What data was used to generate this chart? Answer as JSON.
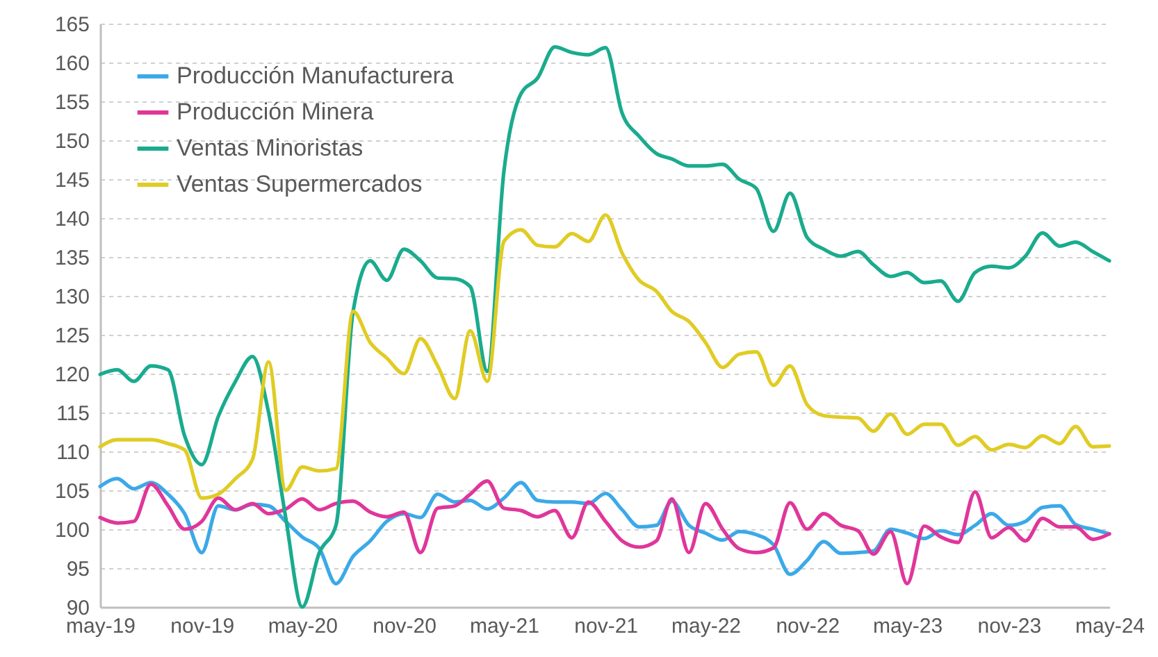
{
  "chart_data": {
    "type": "line",
    "legend": "top left",
    "grid": "y",
    "line_style": "solid",
    "x": [
      "2019-05",
      "2019-06",
      "2019-07",
      "2019-08",
      "2019-09",
      "2019-10",
      "2019-11",
      "2019-12",
      "2020-01",
      "2020-02",
      "2020-03",
      "2020-04",
      "2020-05",
      "2020-06",
      "2020-07",
      "2020-08",
      "2020-09",
      "2020-10",
      "2020-11",
      "2020-12",
      "2021-01",
      "2021-02",
      "2021-03",
      "2021-04",
      "2021-05",
      "2021-06",
      "2021-07",
      "2021-08",
      "2021-09",
      "2021-10",
      "2021-11",
      "2021-12",
      "2022-01",
      "2022-02",
      "2022-03",
      "2022-04",
      "2022-05",
      "2022-06",
      "2022-07",
      "2022-08",
      "2022-09",
      "2022-10",
      "2022-11",
      "2022-12",
      "2023-01",
      "2023-02",
      "2023-03",
      "2023-04",
      "2023-05",
      "2023-06",
      "2023-07",
      "2023-08",
      "2023-09",
      "2023-10",
      "2023-11",
      "2023-12",
      "2024-01",
      "2024-02",
      "2024-03",
      "2024-04",
      "2024-05"
    ],
    "xlim": [
      "2019-05",
      "2024-05"
    ],
    "xticks": [
      {
        "value": "2019-05",
        "label": "may-19"
      },
      {
        "value": "2019-11",
        "label": "nov-19"
      },
      {
        "value": "2020-05",
        "label": "may-20"
      },
      {
        "value": "2020-11",
        "label": "nov-20"
      },
      {
        "value": "2021-05",
        "label": "may-21"
      },
      {
        "value": "2021-11",
        "label": "nov-21"
      },
      {
        "value": "2022-05",
        "label": "may-22"
      },
      {
        "value": "2022-11",
        "label": "nov-22"
      },
      {
        "value": "2023-05",
        "label": "may-23"
      },
      {
        "value": "2023-11",
        "label": "nov-23"
      },
      {
        "value": "2024-05",
        "label": "may-24"
      }
    ],
    "ylim": [
      90,
      165
    ],
    "yticks": [
      90,
      95,
      100,
      105,
      110,
      115,
      120,
      125,
      130,
      135,
      140,
      145,
      150,
      155,
      160,
      165
    ],
    "series": [
      {
        "name": "Producción Manufacturera",
        "color": "#3ba9e8",
        "values": [
          105.5,
          106.5,
          105.2,
          106,
          104.5,
          102,
          97,
          103,
          102.5,
          103.2,
          103,
          101,
          99,
          97.5,
          93,
          96.5,
          98.5,
          101,
          102,
          101.5,
          104.5,
          103.5,
          103.7,
          102.6,
          104,
          106,
          103.7,
          103.5,
          103.5,
          103.3,
          104.6,
          102.5,
          100.3,
          100.5,
          103.6,
          100.5,
          99.5,
          98.6,
          99.7,
          99.3,
          98,
          94.2,
          96,
          98.4,
          96.9,
          97,
          97.2,
          100,
          99.5,
          98.8,
          99.8,
          99.3,
          100.5,
          102,
          100.5,
          101,
          102.8,
          103,
          100.6,
          100,
          99.4
        ]
      },
      {
        "name": "Producción Minera",
        "color": "#e0369a",
        "values": [
          101.5,
          100.8,
          101,
          105.8,
          103,
          100,
          101,
          104,
          102.5,
          103.3,
          102,
          102.6,
          103.9,
          102.5,
          103.3,
          103.6,
          102.2,
          101.6,
          102.2,
          97,
          102.7,
          103,
          104.5,
          106.2,
          102.7,
          102.4,
          101.6,
          102.4,
          98.9,
          103.5,
          101,
          98.5,
          97.7,
          98.5,
          103.9,
          97,
          103.3,
          100,
          97.5,
          97,
          97.6,
          103.4,
          100,
          102,
          100.5,
          99.8,
          96.8,
          99.7,
          93,
          100.4,
          99,
          98.3,
          104.8,
          98.9,
          100.2,
          98.5,
          101.4,
          100.3,
          100.3,
          98.7,
          99.4
        ]
      },
      {
        "name": "Ventas Minoristas",
        "color": "#1aab8e",
        "values": [
          119.9,
          120.5,
          119,
          121,
          120.5,
          112,
          108.3,
          114.5,
          119,
          122.2,
          115,
          101.5,
          90,
          97,
          100.5,
          128,
          134.5,
          132,
          136,
          134.5,
          132.3,
          132.2,
          131.2,
          120.3,
          146,
          156,
          158,
          162,
          161.3,
          161,
          161.9,
          153.5,
          150.5,
          148.3,
          147.6,
          146.7,
          146.7,
          146.9,
          145,
          143.8,
          138.3,
          143.2,
          137.5,
          136,
          135.1,
          135.7,
          134,
          132.5,
          133,
          131.7,
          131.9,
          129.3,
          133,
          133.8,
          133.6,
          135.1,
          138.1,
          136.4,
          136.9,
          135.7,
          134.5
        ]
      },
      {
        "name": "Ventas Supermercados",
        "color": "#e0cc24",
        "values": [
          110.6,
          111.5,
          111.5,
          111.5,
          111,
          110.2,
          104,
          104.5,
          106.5,
          109,
          121.5,
          105,
          108,
          107.5,
          107.8,
          128,
          124,
          122,
          120,
          124.5,
          121,
          116.8,
          125.5,
          119,
          137,
          138.5,
          136.5,
          136.3,
          138,
          137,
          140.4,
          135.5,
          132,
          130.6,
          128,
          126.7,
          124,
          120.8,
          122.5,
          122.8,
          118.5,
          121,
          116,
          114.6,
          114.4,
          114.3,
          112.6,
          114.8,
          112.2,
          113.5,
          113.5,
          110.8,
          111.9,
          110.2,
          110.9,
          110.5,
          112,
          111,
          113.2,
          110.6,
          110.7
        ]
      }
    ]
  }
}
